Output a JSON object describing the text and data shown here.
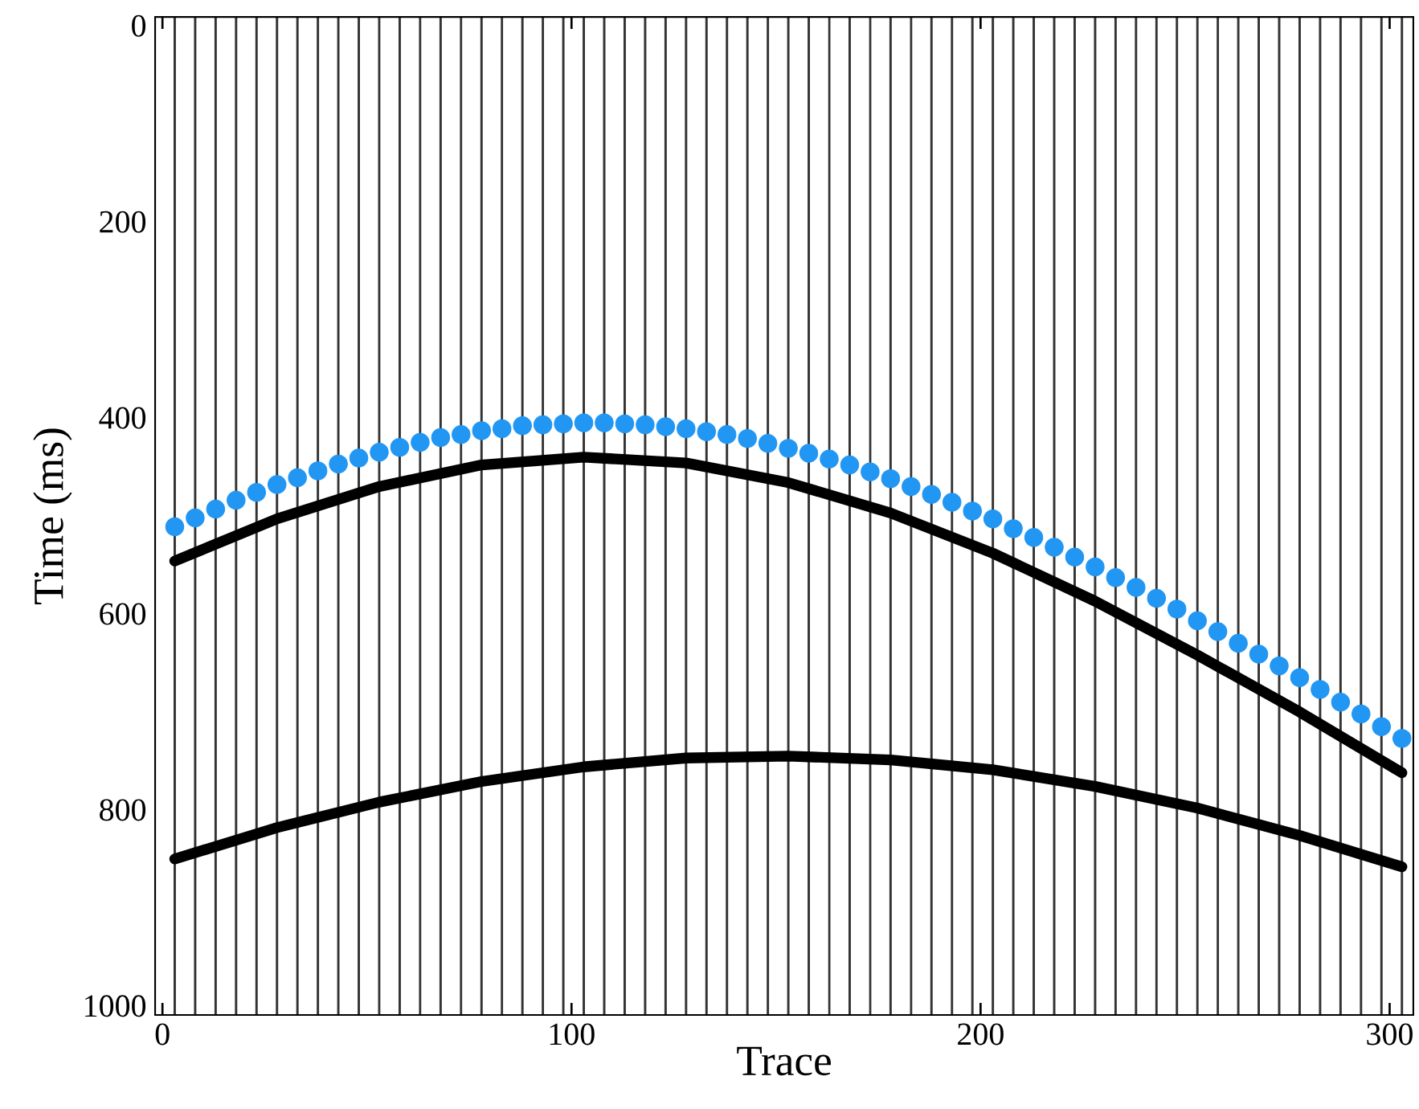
{
  "chart_data": {
    "type": "scatter",
    "xlabel": "Trace",
    "ylabel": "Time (ms)",
    "xlim": [
      -2,
      306
    ],
    "ylim": [
      1010,
      -10
    ],
    "xticks": [
      0,
      100,
      200,
      300
    ],
    "yticks": [
      0,
      200,
      400,
      600,
      800,
      1000
    ],
    "grid": false,
    "series": [
      {
        "type": "line",
        "color": "#000000",
        "marker": "none",
        "line_style": "solid",
        "x": [
          3,
          28,
          53,
          78,
          103,
          128,
          153,
          178,
          203,
          228,
          253,
          278,
          303
        ],
        "values": [
          546,
          503,
          470,
          448,
          440,
          446,
          466,
          497,
          538,
          587,
          642,
          700,
          762
        ]
      },
      {
        "type": "line",
        "color": "#000000",
        "marker": "none",
        "line_style": "solid",
        "x": [
          3,
          28,
          53,
          78,
          103,
          128,
          153,
          178,
          203,
          228,
          253,
          278,
          303
        ],
        "values": [
          850,
          818,
          792,
          771,
          756,
          747,
          745,
          749,
          759,
          776,
          798,
          826,
          858
        ]
      },
      {
        "color": "#2196f3",
        "marker": "circle",
        "x": [
          3,
          8,
          13,
          18,
          23,
          28,
          33,
          38,
          43,
          48,
          53,
          58,
          63,
          68,
          73,
          78,
          83,
          88,
          93,
          98,
          103,
          108,
          113,
          118,
          123,
          128,
          133,
          138,
          143,
          148,
          153,
          158,
          163,
          168,
          173,
          178,
          183,
          188,
          193,
          198,
          203,
          208,
          213,
          218,
          223,
          228,
          233,
          238,
          243,
          248,
          253,
          258,
          263,
          268,
          273,
          278,
          283,
          288,
          293,
          298,
          303
        ],
        "values": [
          511,
          502,
          493,
          484,
          476,
          468,
          461,
          454,
          447,
          441,
          435,
          430,
          425,
          420,
          417,
          413,
          411,
          408,
          407,
          406,
          405,
          405,
          406,
          407,
          409,
          411,
          414,
          417,
          421,
          426,
          431,
          436,
          442,
          448,
          455,
          462,
          470,
          478,
          486,
          495,
          503,
          513,
          522,
          532,
          542,
          552,
          563,
          573,
          584,
          595,
          607,
          618,
          630,
          641,
          653,
          665,
          677,
          690,
          702,
          715,
          727
        ]
      }
    ],
    "ref_lines": [
      {
        "axis": "x",
        "value": 3,
        "color": "#333333"
      },
      {
        "axis": "x",
        "value": 8,
        "color": "#333333"
      },
      {
        "axis": "x",
        "value": 13,
        "color": "#333333"
      },
      {
        "axis": "x",
        "value": 18,
        "color": "#333333"
      },
      {
        "axis": "x",
        "value": 23,
        "color": "#333333"
      },
      {
        "axis": "x",
        "value": 28,
        "color": "#333333"
      },
      {
        "axis": "x",
        "value": 33,
        "color": "#333333"
      },
      {
        "axis": "x",
        "value": 38,
        "color": "#333333"
      },
      {
        "axis": "x",
        "value": 43,
        "color": "#333333"
      },
      {
        "axis": "x",
        "value": 48,
        "color": "#333333"
      },
      {
        "axis": "x",
        "value": 53,
        "color": "#333333"
      },
      {
        "axis": "x",
        "value": 58,
        "color": "#333333"
      },
      {
        "axis": "x",
        "value": 63,
        "color": "#333333"
      },
      {
        "axis": "x",
        "value": 68,
        "color": "#333333"
      },
      {
        "axis": "x",
        "value": 73,
        "color": "#333333"
      },
      {
        "axis": "x",
        "value": 78,
        "color": "#333333"
      },
      {
        "axis": "x",
        "value": 83,
        "color": "#333333"
      },
      {
        "axis": "x",
        "value": 88,
        "color": "#333333"
      },
      {
        "axis": "x",
        "value": 93,
        "color": "#333333"
      },
      {
        "axis": "x",
        "value": 98,
        "color": "#333333"
      },
      {
        "axis": "x",
        "value": 103,
        "color": "#333333"
      },
      {
        "axis": "x",
        "value": 108,
        "color": "#333333"
      },
      {
        "axis": "x",
        "value": 113,
        "color": "#333333"
      },
      {
        "axis": "x",
        "value": 118,
        "color": "#333333"
      },
      {
        "axis": "x",
        "value": 123,
        "color": "#333333"
      },
      {
        "axis": "x",
        "value": 128,
        "color": "#333333"
      },
      {
        "axis": "x",
        "value": 133,
        "color": "#333333"
      },
      {
        "axis": "x",
        "value": 138,
        "color": "#333333"
      },
      {
        "axis": "x",
        "value": 143,
        "color": "#333333"
      },
      {
        "axis": "x",
        "value": 148,
        "color": "#333333"
      },
      {
        "axis": "x",
        "value": 153,
        "color": "#333333"
      },
      {
        "axis": "x",
        "value": 158,
        "color": "#333333"
      },
      {
        "axis": "x",
        "value": 163,
        "color": "#333333"
      },
      {
        "axis": "x",
        "value": 168,
        "color": "#333333"
      },
      {
        "axis": "x",
        "value": 173,
        "color": "#333333"
      },
      {
        "axis": "x",
        "value": 178,
        "color": "#333333"
      },
      {
        "axis": "x",
        "value": 183,
        "color": "#333333"
      },
      {
        "axis": "x",
        "value": 188,
        "color": "#333333"
      },
      {
        "axis": "x",
        "value": 193,
        "color": "#333333"
      },
      {
        "axis": "x",
        "value": 198,
        "color": "#333333"
      },
      {
        "axis": "x",
        "value": 203,
        "color": "#333333"
      },
      {
        "axis": "x",
        "value": 208,
        "color": "#333333"
      },
      {
        "axis": "x",
        "value": 213,
        "color": "#333333"
      },
      {
        "axis": "x",
        "value": 218,
        "color": "#333333"
      },
      {
        "axis": "x",
        "value": 223,
        "color": "#333333"
      },
      {
        "axis": "x",
        "value": 228,
        "color": "#333333"
      },
      {
        "axis": "x",
        "value": 233,
        "color": "#333333"
      },
      {
        "axis": "x",
        "value": 238,
        "color": "#333333"
      },
      {
        "axis": "x",
        "value": 243,
        "color": "#333333"
      },
      {
        "axis": "x",
        "value": 248,
        "color": "#333333"
      },
      {
        "axis": "x",
        "value": 253,
        "color": "#333333"
      },
      {
        "axis": "x",
        "value": 258,
        "color": "#333333"
      },
      {
        "axis": "x",
        "value": 263,
        "color": "#333333"
      },
      {
        "axis": "x",
        "value": 268,
        "color": "#333333"
      },
      {
        "axis": "x",
        "value": 273,
        "color": "#333333"
      },
      {
        "axis": "x",
        "value": 278,
        "color": "#333333"
      },
      {
        "axis": "x",
        "value": 283,
        "color": "#333333"
      },
      {
        "axis": "x",
        "value": 288,
        "color": "#333333"
      },
      {
        "axis": "x",
        "value": 293,
        "color": "#333333"
      },
      {
        "axis": "x",
        "value": 298,
        "color": "#333333"
      },
      {
        "axis": "x",
        "value": 303,
        "color": "#333333"
      }
    ]
  }
}
